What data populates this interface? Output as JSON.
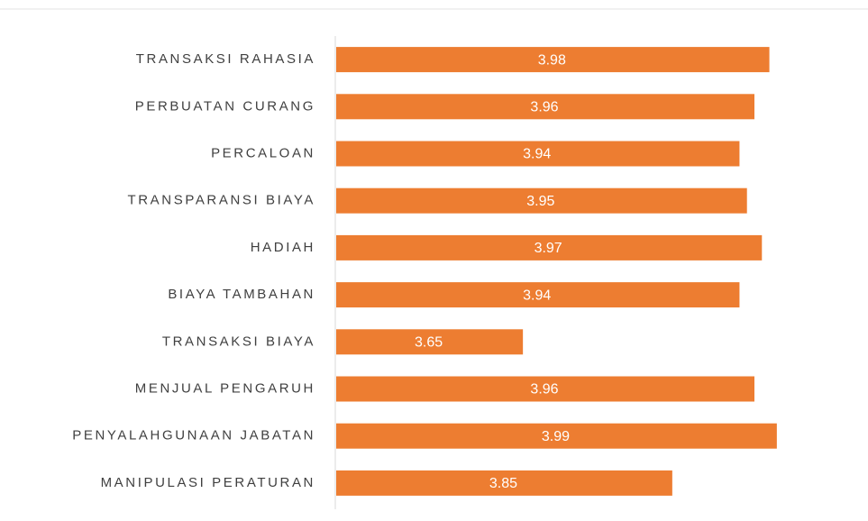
{
  "chart_data": {
    "type": "bar",
    "orientation": "horizontal",
    "categories": [
      "TRANSAKSI RAHASIA",
      "PERBUATAN CURANG",
      "PERCALOAN",
      "TRANSPARANSI BIAYA",
      "HADIAH",
      "BIAYA TAMBAHAN",
      "TRANSAKSI BIAYA",
      "MENJUAL PENGARUH",
      "PENYALAHGUNAAN JABATAN",
      "MANIPULASI PERATURAN"
    ],
    "values": [
      3.98,
      3.96,
      3.94,
      3.95,
      3.97,
      3.94,
      3.65,
      3.96,
      3.99,
      3.85
    ],
    "color": "#ed7d31",
    "xlim": [
      3.4,
      4.1
    ]
  }
}
